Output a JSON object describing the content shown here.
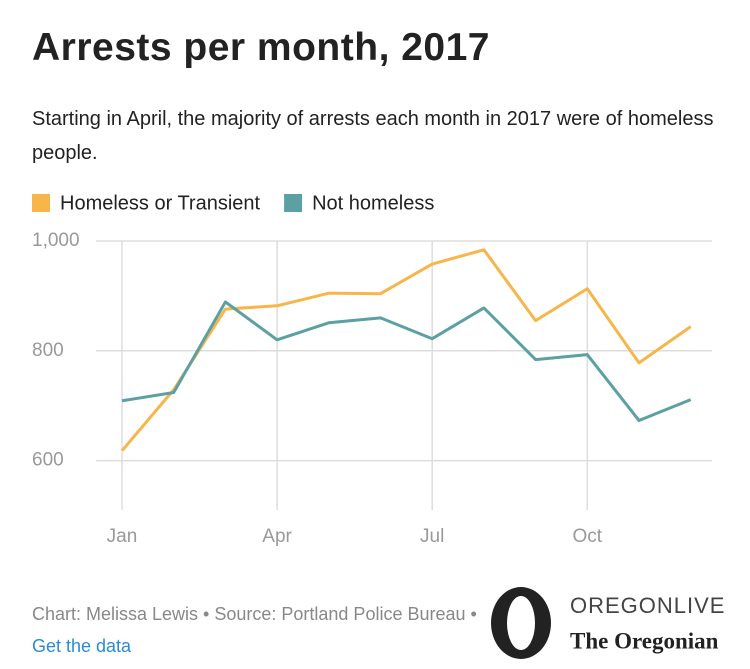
{
  "chart_data": {
    "type": "line",
    "title": "Arrests per month, 2017",
    "subtitle": "Starting in April, the majority of arrests each month in 2017 were of homeless people.",
    "categories": [
      "Jan",
      null,
      null,
      "Apr",
      null,
      null,
      "Jul",
      null,
      null,
      "Oct",
      null,
      null
    ],
    "series": [
      {
        "name": "Homeless or Transient",
        "color": "#f8b54a",
        "values": [
          618,
          729,
          876,
          882,
          905,
          904,
          958,
          984,
          855,
          913,
          778,
          844
        ]
      },
      {
        "name": "Not homeless",
        "color": "#5ba0a3",
        "values": [
          709,
          724,
          889,
          820,
          851,
          860,
          822,
          878,
          784,
          793,
          673,
          711
        ]
      }
    ],
    "ylim": [
      510,
      1000
    ],
    "yticks": [
      600,
      800,
      {
        "value": 1000,
        "label": "1,000"
      }
    ],
    "grid": true,
    "legend": "top-left",
    "source": "Chart: Melissa Lewis • Source: Portland Police Bureau •",
    "link": "Get the data"
  },
  "logo": {
    "top": "OREGONLIVE",
    "bottom": "The Oregonian"
  }
}
